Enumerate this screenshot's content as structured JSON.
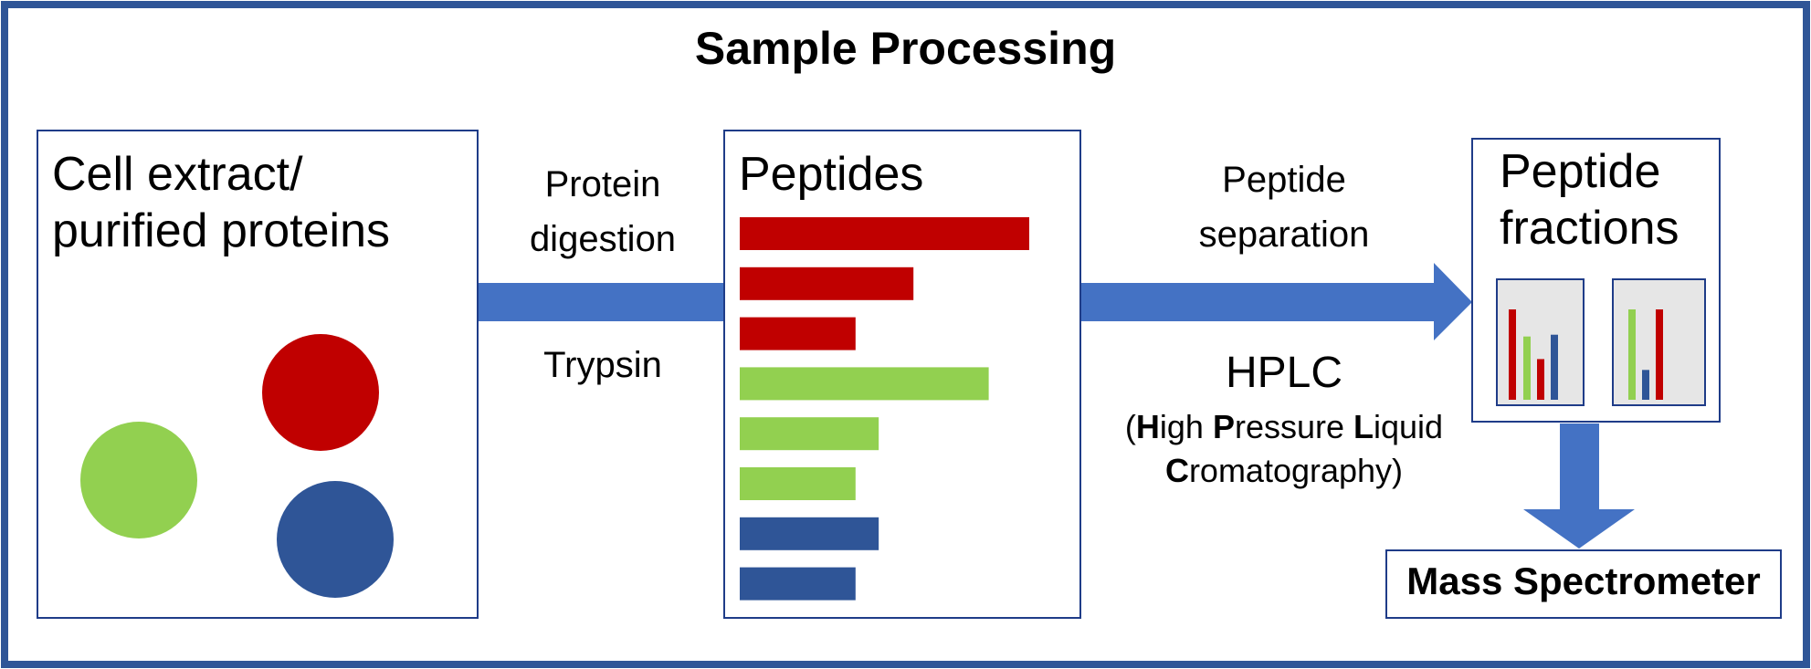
{
  "title": "Sample Processing",
  "boxes": {
    "cell_extract": {
      "line1": "Cell extract/",
      "line2": "purified proteins"
    },
    "peptides": {
      "label": "Peptides"
    },
    "fractions": {
      "line1": "Peptide",
      "line2": "fractions"
    },
    "mass_spec": {
      "label": "Mass Spectrometer"
    }
  },
  "steps": {
    "digestion": {
      "line1": "Protein",
      "line2": "digestion",
      "reagent": "Trypsin"
    },
    "separation": {
      "line1": "Peptide",
      "line2": "separation",
      "method": "HPLC",
      "expansion": {
        "open": "(",
        "h": "H",
        "h_rest": "igh ",
        "p": "P",
        "p_rest": "ressure ",
        "l": "L",
        "l_rest": "iquid",
        "c": "C",
        "c_rest": "romatography)"
      }
    }
  },
  "colors": {
    "red": "#c00000",
    "green": "#92d050",
    "blue": "#2f5597",
    "arrow": "#4472c4",
    "frame": "#2f5597",
    "box_border": "#1f3c88",
    "fraction_fill": "#e6e6e6"
  },
  "protein_circles": [
    "green",
    "red",
    "blue"
  ],
  "peptide_bars": [
    {
      "color": "red",
      "length": 1.0
    },
    {
      "color": "red",
      "length": 0.6
    },
    {
      "color": "red",
      "length": 0.4
    },
    {
      "color": "green",
      "length": 0.86
    },
    {
      "color": "green",
      "length": 0.48
    },
    {
      "color": "green",
      "length": 0.4
    },
    {
      "color": "blue",
      "length": 0.48
    },
    {
      "color": "blue",
      "length": 0.4
    }
  ],
  "fraction_panels": [
    {
      "bars": [
        {
          "color": "red",
          "height": 1.0
        },
        {
          "color": "green",
          "height": 0.7
        },
        {
          "color": "red",
          "height": 0.45
        },
        {
          "color": "blue",
          "height": 0.72
        }
      ]
    },
    {
      "bars": [
        {
          "color": "green",
          "height": 1.0
        },
        {
          "color": "blue",
          "height": 0.33
        },
        {
          "color": "red",
          "height": 1.0
        }
      ]
    }
  ]
}
